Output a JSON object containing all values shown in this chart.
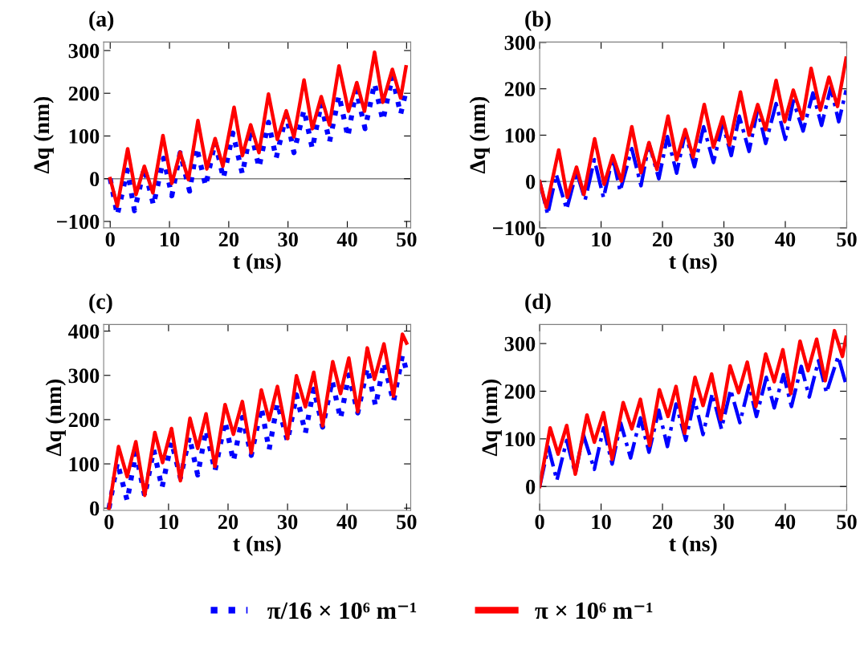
{
  "chart_data": [
    {
      "type": "line",
      "title": "(a)",
      "xlabel": "t (ns)",
      "ylabel": "Δq (nm)",
      "xlim": [
        -1.1,
        50.7
      ],
      "ylim": [
        -115,
        320
      ],
      "xticks": [
        0,
        10,
        20,
        30,
        40,
        50
      ],
      "yticks": [
        -100,
        0,
        100,
        200,
        300
      ],
      "grid": false,
      "legend": "bottom",
      "ref_lines": [
        {
          "axis": "y",
          "value": 0,
          "color": "#808080"
        }
      ],
      "series": [
        {
          "name": "π/16 × 10⁶ m⁻¹",
          "color": "#0000ff",
          "line_style": "dotted",
          "x": [
            0,
            1.2,
            2.9,
            4.1,
            5.76,
            7.3,
            9.0,
            10.4,
            11.8,
            13.4,
            14.6,
            16.1,
            17.7,
            19.1,
            20.7,
            22.3,
            23.7,
            25.1,
            26.7,
            28.0,
            29.7,
            31.0,
            32.7,
            34.1,
            35.6,
            37.0,
            38.6,
            40.1,
            41.5,
            43.0,
            44.6,
            46.0,
            47.6,
            49.0,
            49.9
          ],
          "values": [
            0,
            -85,
            20,
            -75,
            25,
            -62,
            48,
            -40,
            61,
            -29,
            73,
            -17,
            86,
            1,
            107,
            11,
            114,
            26,
            132,
            48,
            150,
            61,
            161,
            70,
            176,
            86,
            195,
            98,
            208,
            117,
            223,
            136,
            239,
            151,
            204
          ]
        },
        {
          "name": "π × 10⁶ m⁻¹",
          "color": "#ff0000",
          "line_style": "solid",
          "x": [
            0,
            1.2,
            2.95,
            4.35,
            5.76,
            7.2,
            8.9,
            10.4,
            11.8,
            13.2,
            14.8,
            16.3,
            17.7,
            19.0,
            20.9,
            22.3,
            23.7,
            25.1,
            26.7,
            28.2,
            29.7,
            31.0,
            32.7,
            34.1,
            35.6,
            37.0,
            38.6,
            40.2,
            41.6,
            42.9,
            44.6,
            46.0,
            47.6,
            49.0,
            49.9
          ],
          "values": [
            0,
            -64,
            70,
            -37,
            29,
            -33,
            101,
            -11,
            62,
            -2,
            136,
            23,
            94,
            29,
            167,
            54,
            126,
            61,
            198,
            92,
            159,
            98,
            231,
            117,
            192,
            126,
            264,
            158,
            225,
            158,
            296,
            179,
            256,
            189,
            262
          ]
        }
      ]
    },
    {
      "type": "line",
      "title": "(b)",
      "xlabel": "t (ns)",
      "ylabel": "Δq (nm)",
      "xlim": [
        0,
        50
      ],
      "ylim": [
        -100,
        301
      ],
      "xticks": [
        0,
        10,
        20,
        30,
        40,
        50
      ],
      "yticks": [
        -100,
        0,
        100,
        200,
        300
      ],
      "grid": false,
      "legend": "bottom",
      "ref_lines": [
        {
          "axis": "y",
          "value": 0,
          "color": "#808080"
        }
      ],
      "series": [
        {
          "name": "π/16 × 10⁶ m⁻¹",
          "color": "#0000ff",
          "line_style": "dashdot",
          "x": [
            0,
            1.3,
            2.7,
            4.4,
            6.0,
            7.4,
            8.9,
            10.4,
            11.9,
            13.1,
            15.0,
            16.5,
            17.8,
            19.4,
            20.8,
            22.3,
            23.7,
            25.2,
            26.7,
            28.3,
            29.8,
            31.2,
            32.5,
            34.1,
            35.5,
            36.8,
            38.5,
            40.0,
            41.3,
            42.9,
            44.5,
            45.9,
            47.4,
            48.7,
            49.9
          ],
          "values": [
            0,
            -71,
            15,
            -60,
            21,
            -40,
            47,
            -35,
            53,
            -21,
            71,
            -9,
            82,
            6,
            97,
            18,
            106,
            32,
            118,
            41,
            124,
            56,
            141,
            65,
            156,
            82,
            168,
            91,
            174,
            109,
            191,
            121,
            203,
            129,
            197
          ]
        },
        {
          "name": "π × 10⁶ m⁻¹",
          "color": "#ff0000",
          "line_style": "solid",
          "x": [
            0,
            1.1,
            3.1,
            4.5,
            6.0,
            7.2,
            8.95,
            10.5,
            11.9,
            13.3,
            15.0,
            16.5,
            17.8,
            19.1,
            20.9,
            22.3,
            23.7,
            24.98,
            26.8,
            28.3,
            29.8,
            30.9,
            32.7,
            34.1,
            35.5,
            36.8,
            38.5,
            39.9,
            41.3,
            42.8,
            44.2,
            45.7,
            47.1,
            48.5,
            49.9
          ],
          "values": [
            0,
            -56,
            68,
            -34,
            31,
            -28,
            92,
            -6,
            56,
            1,
            118,
            19,
            84,
            26,
            141,
            47,
            112,
            53,
            166,
            74,
            139,
            79,
            193,
            100,
            166,
            112,
            218,
            129,
            197,
            135,
            244,
            154,
            225,
            162,
            266
          ]
        }
      ]
    },
    {
      "type": "line",
      "title": "(c)",
      "xlabel": "t (ns)",
      "ylabel": "Δq (nm)",
      "xlim": [
        -0.9,
        50.7
      ],
      "ylim": [
        -5,
        415
      ],
      "xticks": [
        0,
        10,
        20,
        30,
        40,
        50
      ],
      "yticks": [
        0,
        100,
        200,
        300,
        400
      ],
      "grid": false,
      "legend": "bottom",
      "series": [
        {
          "name": "π/16 × 10⁶ m⁻¹",
          "color": "#0000ff",
          "line_style": "dotted",
          "x": [
            0,
            1.4,
            3.05,
            4.5,
            6.0,
            7.5,
            8.9,
            10.5,
            12.0,
            13.5,
            14.9,
            16.3,
            17.8,
            19.5,
            20.9,
            22.4,
            23.9,
            25.6,
            26.9,
            28.3,
            30.0,
            31.5,
            33.0,
            34.4,
            35.9,
            37.5,
            38.9,
            40.3,
            41.8,
            43.4,
            44.8,
            46.2,
            47.8,
            49.3,
            50.0
          ],
          "values": [
            0,
            103,
            17,
            125,
            27,
            132,
            46,
            150,
            68,
            161,
            75,
            176,
            84,
            196,
            106,
            205,
            119,
            227,
            132,
            237,
            151,
            256,
            170,
            269,
            183,
            288,
            202,
            301,
            215,
            317,
            231,
            329,
            240,
            345,
            310
          ]
        },
        {
          "name": "π × 10⁶ m⁻¹",
          "color": "#ff0000",
          "line_style": "solid",
          "x": [
            0,
            1.6,
            3.05,
            4.5,
            6.0,
            7.7,
            9.0,
            10.5,
            12.0,
            13.6,
            14.9,
            16.3,
            17.8,
            19.5,
            20.9,
            22.4,
            23.9,
            25.6,
            26.9,
            28.3,
            30.0,
            31.5,
            33.0,
            34.4,
            35.9,
            37.6,
            38.9,
            40.3,
            41.8,
            43.4,
            44.6,
            46.2,
            47.8,
            49.3,
            50.0
          ],
          "values": [
            0,
            139,
            71,
            150,
            29,
            171,
            103,
            180,
            62,
            203,
            135,
            213,
            94,
            234,
            167,
            241,
            125,
            267,
            199,
            275,
            157,
            299,
            229,
            307,
            186,
            331,
            259,
            339,
            218,
            362,
            291,
            371,
            253,
            393,
            373
          ]
        }
      ]
    },
    {
      "type": "line",
      "title": "(d)",
      "xlabel": "t (ns)",
      "ylabel": "Δq (nm)",
      "xlim": [
        0,
        50
      ],
      "ylim": [
        -50,
        340
      ],
      "xticks": [
        0,
        10,
        20,
        30,
        40,
        50
      ],
      "yticks": [
        0,
        100,
        200,
        300
      ],
      "grid": false,
      "legend": "bottom",
      "ref_lines": [
        {
          "axis": "y",
          "value": 0,
          "color": "#808080"
        }
      ],
      "series": [
        {
          "name": "π/16 × 10⁶ m⁻¹",
          "color": "#0000ff",
          "line_style": "dashdot",
          "x": [
            0,
            1.4,
            2.8,
            4.4,
            5.8,
            7.1,
            8.9,
            10.4,
            11.8,
            13.2,
            14.8,
            16.4,
            17.8,
            19.4,
            20.8,
            22.2,
            23.8,
            25.2,
            26.6,
            28.1,
            29.6,
            31.1,
            32.6,
            34.1,
            35.3,
            36.9,
            38.2,
            39.7,
            41.0,
            42.6,
            43.9,
            45.4,
            46.7,
            48.6,
            49.9
          ],
          "values": [
            0,
            83,
            13,
            97,
            27,
            109,
            36,
            123,
            47,
            133,
            60,
            144,
            72,
            160,
            84,
            173,
            97,
            183,
            109,
            195,
            121,
            203,
            134,
            212,
            147,
            229,
            165,
            235,
            168,
            252,
            188,
            264,
            197,
            273,
            214
          ]
        },
        {
          "name": "π × 10⁶ m⁻¹",
          "color": "#ff0000",
          "line_style": "solid",
          "x": [
            0,
            1.7,
            3.0,
            4.4,
            5.8,
            7.7,
            8.9,
            10.4,
            11.8,
            13.6,
            15.0,
            16.4,
            17.9,
            19.5,
            20.9,
            22.2,
            23.6,
            25.3,
            26.6,
            28.0,
            29.5,
            31.0,
            32.4,
            33.8,
            35.2,
            36.8,
            38.2,
            39.6,
            40.9,
            42.4,
            43.7,
            45.1,
            46.5,
            48.0,
            49.3,
            49.9
          ],
          "values": [
            0,
            123,
            68,
            128,
            26,
            150,
            93,
            155,
            57,
            176,
            121,
            183,
            86,
            203,
            147,
            210,
            112,
            229,
            170,
            236,
            141,
            253,
            197,
            261,
            168,
            278,
            220,
            287,
            195,
            305,
            243,
            309,
            222,
            327,
            273,
            313
          ]
        }
      ]
    }
  ]
}
